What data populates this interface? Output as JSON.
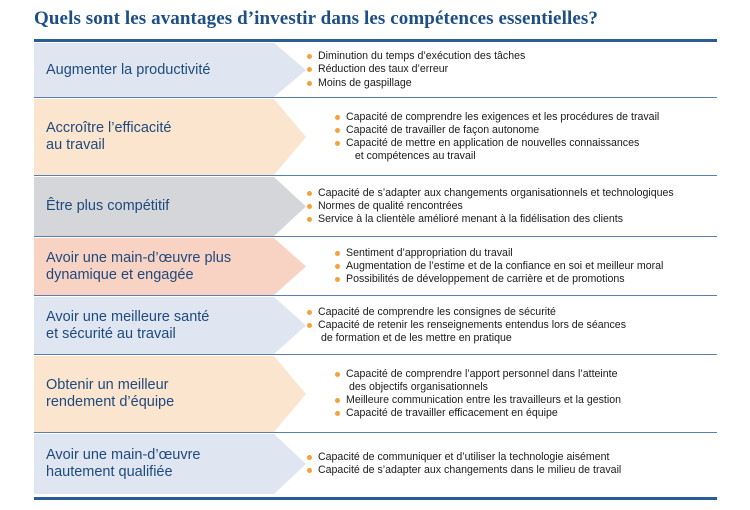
{
  "title": "Quels sont les avantages d’investir dans les compétences essentielles?",
  "rows": [
    {
      "label": "Augmenter la productivité",
      "bullets": [
        "Diminution du temps d’exécution des tâches",
        "Réduction des taux d’erreur",
        "Moins de gaspillage"
      ]
    },
    {
      "label": "Accroître l’efficacité\nau travail",
      "bullets": [
        "Capacité de comprendre les exigences et les procédures de travail",
        "Capacité de travailler de façon autonome",
        "Capacité de mettre en application de nouvelles connaissances\n   et compétences au travail"
      ]
    },
    {
      "label": "Être plus compétitif",
      "bullets": [
        "Capacité de s’adapter aux changements organisationnels et technologiques",
        "Normes de qualité rencontrées",
        "Service à la clientèle amélioré menant à la fidélisation des clients"
      ]
    },
    {
      "label": "Avoir une main-d’œuvre plus\ndynamique et engagée",
      "bullets": [
        "Sentiment d’appropriation du travail",
        "Augmentation de l’estime et de la confiance en soi et meilleur moral",
        "Possibilités de développement de carrière et de promotions"
      ]
    },
    {
      "label": "Avoir une meilleure santé\net sécurité au travail",
      "bullets": [
        "Capacité de comprendre les consignes de sécurité",
        "Capacité de retenir les renseignements entendus lors de séances\n de formation et de les mettre en pratique"
      ]
    },
    {
      "label": "Obtenir un meilleur\nrendement d’équipe",
      "bullets": [
        "Capacité de comprendre l’apport personnel dans l’atteinte\n des objectifs organisationnels",
        "Meilleure communication entre les travailleurs et la gestion",
        "Capacité de travailler efficacement en équipe"
      ]
    },
    {
      "label": "Avoir une main-d’œuvre\nhautement qualifiée",
      "bullets": [
        "Capacité de communiquer et d’utiliser la technologie aisément",
        "Capacité de s’adapter aux changements dans le milieu de travail"
      ]
    }
  ],
  "colors": {
    "title": "#1d4f86",
    "label_text": "#1f4a7d",
    "rule": "#2a5c95",
    "bullet": "#f4a23d",
    "row_fills": [
      "#dfe6f1",
      "#fbe5cf",
      "#d4d6da",
      "#f8d3c4",
      "#dfe6f1",
      "#fbe5cf",
      "#dfe6f1"
    ]
  }
}
